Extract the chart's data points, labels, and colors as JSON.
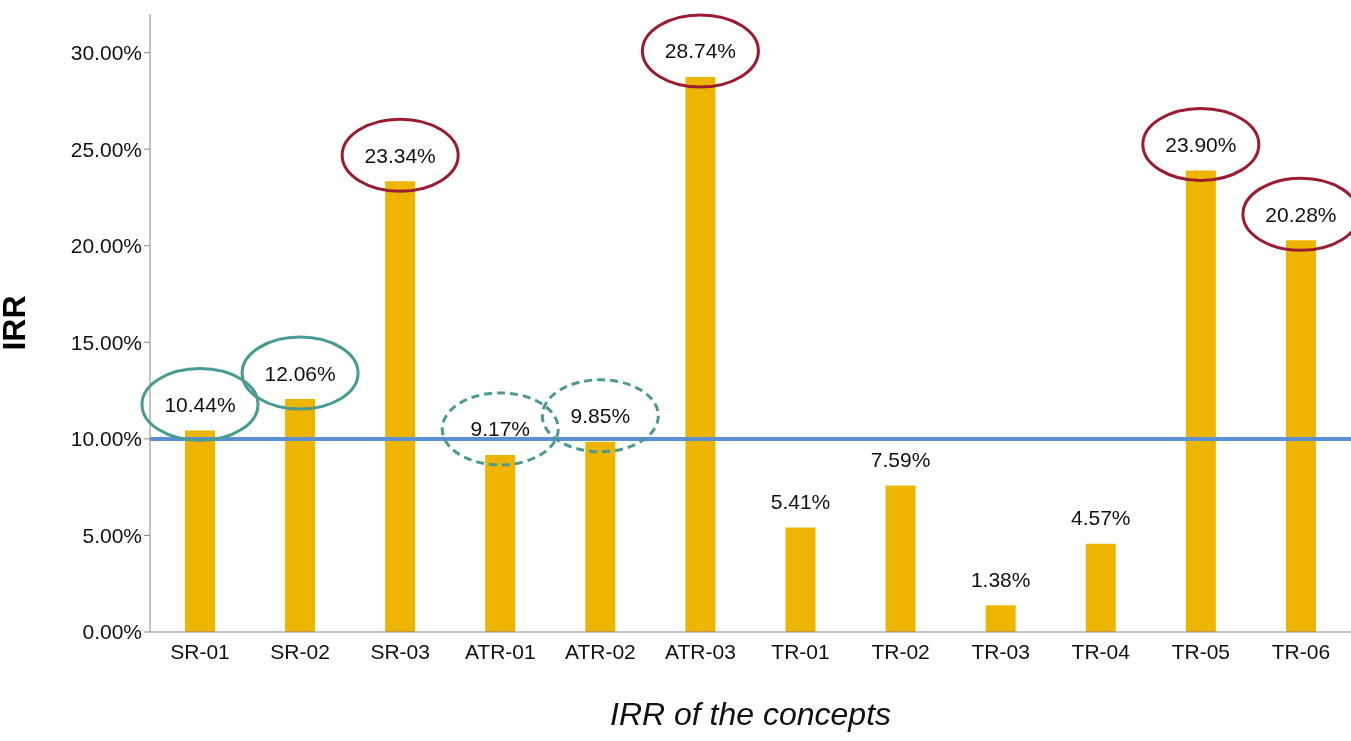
{
  "chart_data": {
    "type": "bar",
    "xlabel": "IRR of the concepts",
    "ylabel": "IRR",
    "categories": [
      "SR-01",
      "SR-02",
      "SR-03",
      "ATR-01",
      "ATR-02",
      "ATR-03",
      "TR-01",
      "TR-02",
      "TR-03",
      "TR-04",
      "TR-05",
      "TR-06"
    ],
    "values": [
      10.44,
      12.06,
      23.34,
      9.17,
      9.85,
      28.74,
      5.41,
      7.59,
      1.38,
      4.57,
      23.9,
      20.28
    ],
    "value_labels": [
      "10.44%",
      "12.06%",
      "23.34%",
      "9.17%",
      "9.85%",
      "28.74%",
      "5.41%",
      "7.59%",
      "1.38%",
      "4.57%",
      "23.90%",
      "20.28%"
    ],
    "color": "#edb500",
    "ylim": [
      0,
      32
    ],
    "yticks": [
      {
        "value": 0,
        "label": "0.00%"
      },
      {
        "value": 5,
        "label": "5.00%"
      },
      {
        "value": 10,
        "label": "10.00%"
      },
      {
        "value": 15,
        "label": "15.00%"
      },
      {
        "value": 20,
        "label": "20.00%"
      },
      {
        "value": 25,
        "label": "25.00%"
      },
      {
        "value": 30,
        "label": "30.00%"
      }
    ],
    "ref_lines": [
      {
        "axis": "y",
        "value": 10,
        "label": null,
        "color": "#5b8fd6"
      }
    ],
    "grid": false
  }
}
